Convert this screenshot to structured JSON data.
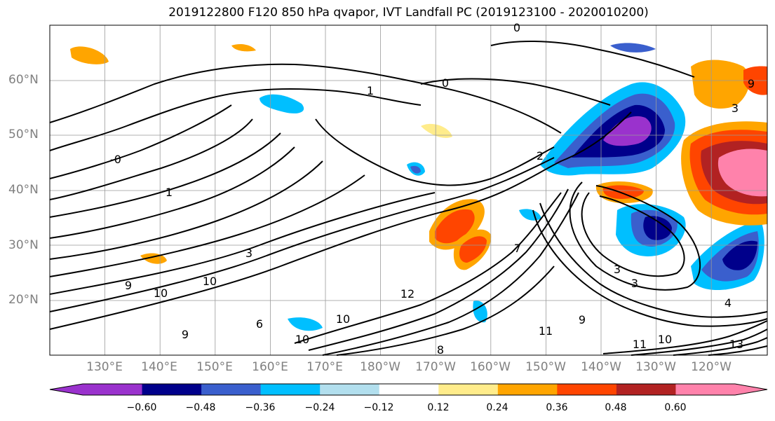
{
  "title": "2019122800 F120 850 hPa qvapor, IVT Landfall PC (2019123100 - 2020010200)",
  "lat_labels": [
    "60°N",
    "50°N",
    "40°N",
    "30°N",
    "20°N"
  ],
  "lon_labels": [
    "130°E",
    "140°E",
    "150°E",
    "160°E",
    "170°E",
    "180°W",
    "170°W",
    "160°W",
    "150°W",
    "140°W",
    "130°W",
    "120°W"
  ],
  "colorbar": {
    "tick_labels": [
      "−0.60",
      "−0.48",
      "−0.36",
      "−0.24",
      "−0.12",
      "0.12",
      "0.24",
      "0.36",
      "0.48",
      "0.60"
    ],
    "colors": [
      "#9a32cd",
      "#00008b",
      "#3a5fcd",
      "#00bfff",
      "#b2dfee",
      "#ffffff",
      "#ffec8b",
      "#ffa500",
      "#ff4500",
      "#b22222",
      "#ff82ab"
    ],
    "extend": "both"
  },
  "contour_labels": [
    "0",
    "1",
    "0",
    "3",
    "-0",
    "1",
    "2",
    "3",
    "9",
    "10",
    "10",
    "9",
    "10",
    "10",
    "12",
    "6",
    "9",
    "11",
    "7",
    "8",
    "9",
    "3",
    "3",
    "4",
    "10",
    "11",
    "13"
  ]
}
